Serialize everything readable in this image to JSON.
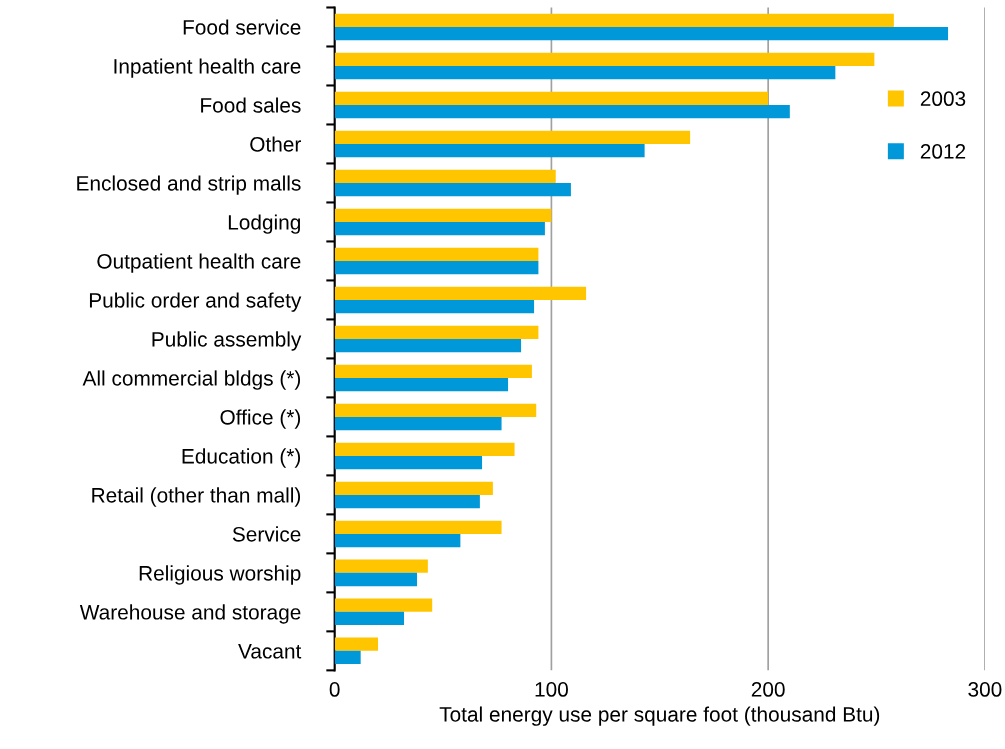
{
  "chart_data": {
    "type": "bar",
    "orientation": "horizontal",
    "xlabel": "Total energy use per square foot (thousand Btu)",
    "categories": [
      "Food service",
      "Inpatient health care",
      "Food sales",
      "Other",
      "Enclosed and strip malls",
      "Lodging",
      "Outpatient health care",
      "Public order and safety",
      "Public assembly",
      "All commercial bldgs (*)",
      "Office (*)",
      "Education (*)",
      "Retail (other than mall)",
      "Service",
      "Religious worship",
      "Warehouse and storage",
      "Vacant"
    ],
    "series": [
      {
        "name": "2003",
        "color": "#ffc600",
        "values": [
          258,
          249,
          200,
          164,
          102,
          100,
          94,
          116,
          94,
          91,
          93,
          83,
          73,
          77,
          43,
          45,
          20
        ]
      },
      {
        "name": "2012",
        "color": "#0098d8",
        "values": [
          283,
          231,
          210,
          143,
          109,
          97,
          94,
          92,
          86,
          80,
          77,
          68,
          67,
          58,
          38,
          32,
          12
        ]
      }
    ],
    "xlim": [
      0,
      300
    ],
    "xticks": [
      0,
      100,
      200,
      300
    ],
    "grid": "x",
    "legend": "right"
  }
}
